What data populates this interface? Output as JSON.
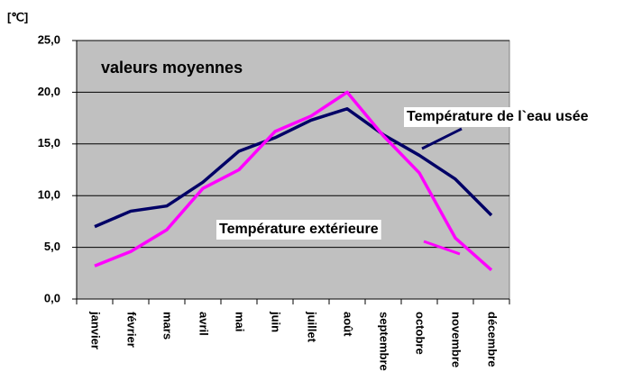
{
  "chart_data": {
    "type": "line",
    "y_label": "[℃]",
    "annotation": "valeurs moyennes",
    "categories": [
      "janvier",
      "février",
      "mars",
      "avril",
      "mai",
      "juin",
      "juillet",
      "août",
      "septembre",
      "octobre",
      "novembre",
      "décembre"
    ],
    "series": [
      {
        "name": "Température de l`eau usée",
        "color": "#000066",
        "values": [
          7.0,
          8.5,
          9.0,
          11.3,
          14.3,
          15.6,
          17.3,
          18.4,
          15.9,
          13.9,
          11.6,
          8.1
        ]
      },
      {
        "name": "Température extérieure",
        "color": "#ff00ff",
        "values": [
          3.2,
          4.6,
          6.7,
          10.7,
          12.5,
          16.2,
          17.7,
          20.0,
          15.8,
          12.2,
          5.9,
          2.8
        ]
      }
    ],
    "ylim": [
      0,
      25
    ],
    "yticks": [
      {
        "value": 0,
        "label": "0,0"
      },
      {
        "value": 5,
        "label": "5,0"
      },
      {
        "value": 10,
        "label": "10,0"
      },
      {
        "value": 15,
        "label": "15,0"
      },
      {
        "value": 20,
        "label": "20,0"
      },
      {
        "value": 25,
        "label": "25,0"
      }
    ],
    "grid": true
  }
}
